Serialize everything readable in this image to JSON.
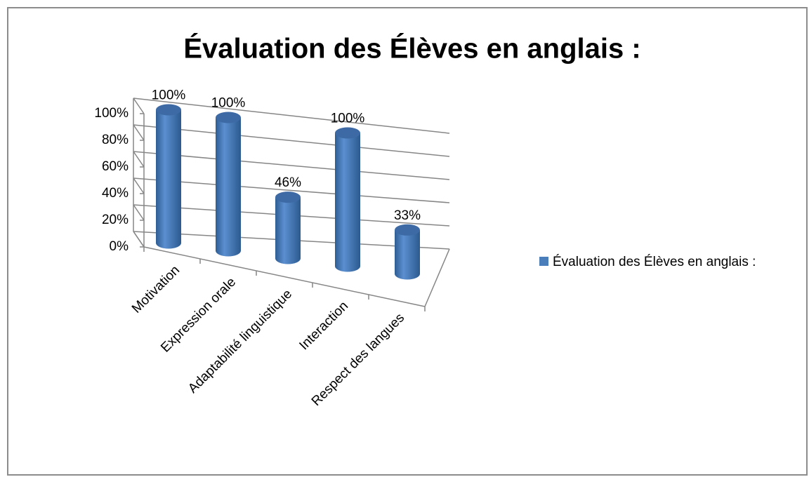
{
  "chart_data": {
    "type": "bar3d",
    "title": "Évaluation des Élèves en anglais :",
    "categories": [
      "Motivation",
      "Expression orale",
      "Adaptabilité linguistique",
      "Interaction",
      "Respect des langues"
    ],
    "series": [
      {
        "name": "Évaluation des Élèves en anglais :",
        "color": "#4a7ebb",
        "values": [
          100,
          100,
          46,
          100,
          33
        ],
        "value_labels": [
          "100%",
          "100%",
          "46%",
          "100%",
          "33%"
        ]
      }
    ],
    "ylim": [
      0,
      100
    ],
    "yticks": [
      {
        "value": 0,
        "label": "0%"
      },
      {
        "value": 20,
        "label": "20%"
      },
      {
        "value": 40,
        "label": "40%"
      },
      {
        "value": 60,
        "label": "60%"
      },
      {
        "value": 80,
        "label": "80%"
      },
      {
        "value": 100,
        "label": "100%"
      }
    ],
    "grid": true,
    "legend": "right"
  }
}
